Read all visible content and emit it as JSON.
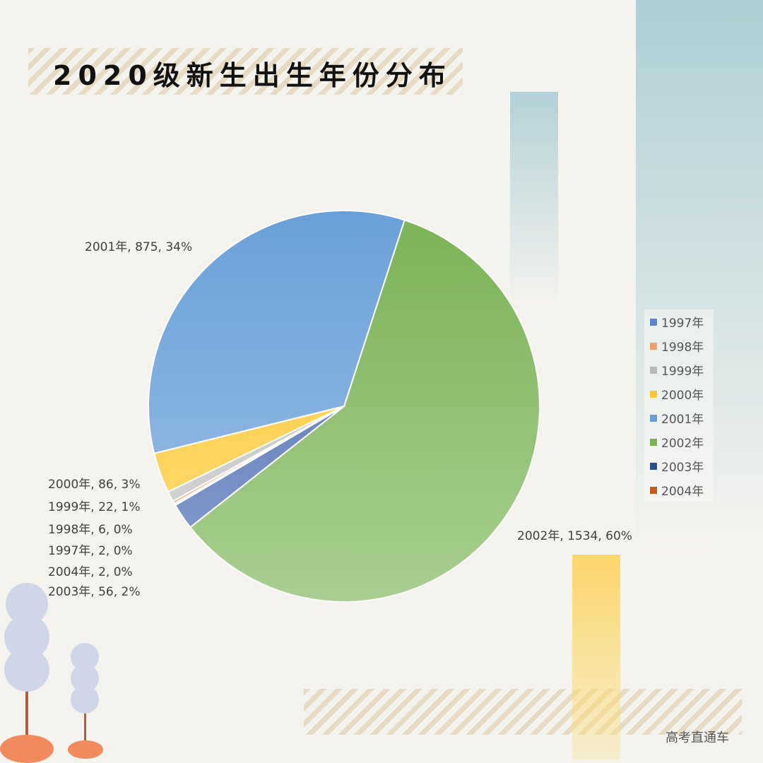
{
  "chart_data": {
    "type": "pie",
    "title": "2020级新生出生年份分布",
    "slices": [
      {
        "label": "2002年",
        "value": 1534,
        "percent": "60%",
        "color": "#7ab356",
        "data_label": "2002年, 1534, 60%"
      },
      {
        "label": "2003年",
        "value": 56,
        "percent": "2%",
        "color": "#4a6db3",
        "data_label": "2003年, 56, 2%"
      },
      {
        "label": "2004年",
        "value": 2,
        "percent": "0%",
        "color": "#c55a1f",
        "data_label": "2004年, 2, 0%"
      },
      {
        "label": "1997年",
        "value": 2,
        "percent": "0%",
        "color": "#5b85cf",
        "data_label": "1997年, 2, 0%"
      },
      {
        "label": "1998年",
        "value": 6,
        "percent": "0%",
        "color": "#f0a070",
        "data_label": "1998年, 6, 0%"
      },
      {
        "label": "1999年",
        "value": 22,
        "percent": "1%",
        "color": "#c0c0c0",
        "data_label": "1999年, 22, 1%"
      },
      {
        "label": "2000年",
        "value": 86,
        "percent": "3%",
        "color": "#fcc832",
        "data_label": "2000年, 86, 3%"
      },
      {
        "label": "2001年",
        "value": 875,
        "percent": "34%",
        "color": "#6aa0d8",
        "data_label": "2001年, 875, 34%"
      }
    ],
    "legend": [
      "1997年",
      "1998年",
      "1999年",
      "2000年",
      "2001年",
      "2002年",
      "2003年",
      "2004年"
    ],
    "legend_colors": [
      "#5b85cf",
      "#f0a070",
      "#b8b8b8",
      "#fcc832",
      "#6aa0d8",
      "#7ab356",
      "#2f4f8f",
      "#c55a1f"
    ],
    "legend_placement": "right"
  },
  "brand": "高考直通车"
}
